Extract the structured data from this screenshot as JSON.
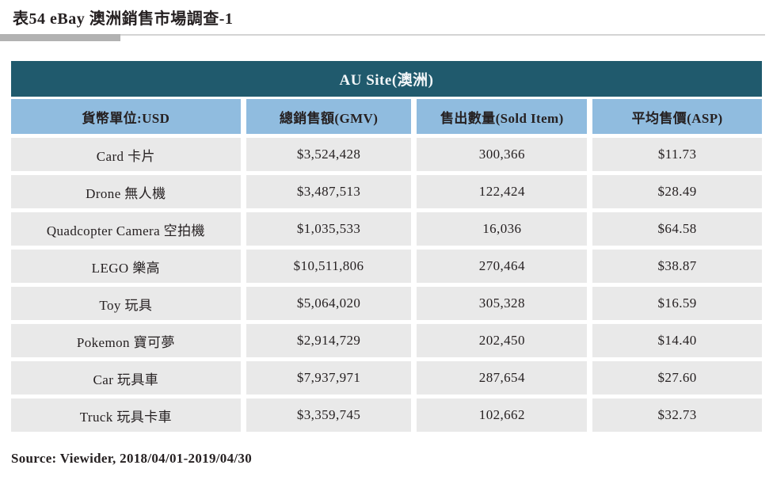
{
  "title": "表54 eBay 澳洲銷售市場調查-1",
  "table": {
    "header": "AU Site(澳洲)",
    "columns": [
      "貨幣單位:USD",
      "總銷售額(GMV)",
      "售出數量(Sold Item)",
      "平均售價(ASP)"
    ],
    "rows": [
      [
        "Card 卡片",
        "$3,524,428",
        "300,366",
        "$11.73"
      ],
      [
        "Drone 無人機",
        "$3,487,513",
        "122,424",
        "$28.49"
      ],
      [
        "Quadcopter Camera 空拍機",
        "$1,035,533",
        "16,036",
        "$64.58"
      ],
      [
        "LEGO 樂高",
        "$10,511,806",
        "270,464",
        "$38.87"
      ],
      [
        "Toy 玩具",
        "$5,064,020",
        "305,328",
        "$16.59"
      ],
      [
        "Pokemon 寶可夢",
        "$2,914,729",
        "202,450",
        "$14.40"
      ],
      [
        "Car 玩具車",
        "$7,937,971",
        "287,654",
        "$27.60"
      ],
      [
        "Truck 玩具卡車",
        "$3,359,745",
        "102,662",
        "$32.73"
      ]
    ]
  },
  "source": "Source: Viewider, 2018/04/01-2019/04/30",
  "colors": {
    "header_bg": "#205a6d",
    "header_text": "#f2f6f8",
    "column_header_bg": "#90bcdf",
    "row_bg": "#e9e9e9",
    "text": "#262122"
  }
}
